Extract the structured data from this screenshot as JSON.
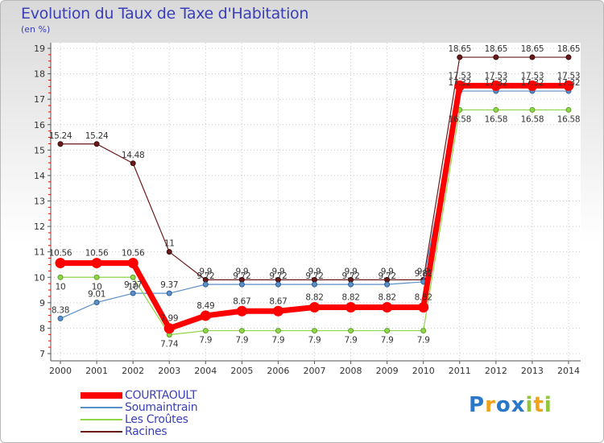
{
  "header": {
    "title": "Evolution du Taux de Taxe d'Habitation",
    "subtitle": "(en %)"
  },
  "chart_data": {
    "type": "line",
    "title": "Evolution du Taux de Taxe d'Habitation",
    "ylabel": "(en %)",
    "xlabel": "",
    "ylim": [
      7,
      19
    ],
    "yticks": [
      7,
      8,
      9,
      10,
      11,
      12,
      13,
      14,
      15,
      16,
      17,
      18,
      19
    ],
    "x": [
      "2000",
      "2001",
      "2002",
      "2003",
      "2004",
      "2005",
      "2006",
      "2007",
      "2008",
      "2009",
      "2010",
      "2011",
      "2012",
      "2013",
      "2014"
    ],
    "legend_position": "bottom-left",
    "series": [
      {
        "name": "Racines",
        "color": "#6b1a1a",
        "values": [
          15.24,
          15.24,
          14.48,
          11,
          9.9,
          9.9,
          9.9,
          9.9,
          9.9,
          9.9,
          9.9,
          18.65,
          18.65,
          18.65,
          18.65
        ]
      },
      {
        "name": "Soumaintrain",
        "color": "#5b8fc7",
        "values": [
          8.38,
          9.01,
          9.37,
          9.37,
          9.72,
          9.72,
          9.72,
          9.72,
          9.72,
          9.72,
          9.82,
          17.32,
          17.32,
          17.32,
          17.32
        ]
      },
      {
        "name": "Les Croûtes",
        "color": "#8fd64a",
        "values": [
          10,
          10,
          10,
          7.74,
          7.9,
          7.9,
          7.9,
          7.9,
          7.9,
          7.9,
          7.9,
          16.58,
          16.58,
          16.58,
          16.58
        ]
      },
      {
        "name": "COURTAOULT",
        "color": "#ff0000",
        "values": [
          10.56,
          10.56,
          10.56,
          7.99,
          8.49,
          8.67,
          8.67,
          8.82,
          8.82,
          8.82,
          8.82,
          17.53,
          17.53,
          17.53,
          17.53
        ]
      }
    ]
  },
  "legend": {
    "items": [
      {
        "label": "COURTAOULT",
        "color": "#ff0000"
      },
      {
        "label": "Soumaintrain",
        "color": "#5b8fc7"
      },
      {
        "label": "Les Croûtes",
        "color": "#8fd64a"
      },
      {
        "label": "Racines",
        "color": "#6b1a1a"
      }
    ]
  },
  "branding": {
    "logo_text": "Proxiti",
    "letters": [
      "P",
      "r",
      "o",
      "x",
      "i",
      "t",
      "i"
    ],
    "letter_colors": [
      "#2a78c8",
      "#f0a21a",
      "#2a78c8",
      "#2a78c8",
      "#8fc63a",
      "#f0a21a",
      "#8fc63a"
    ]
  }
}
